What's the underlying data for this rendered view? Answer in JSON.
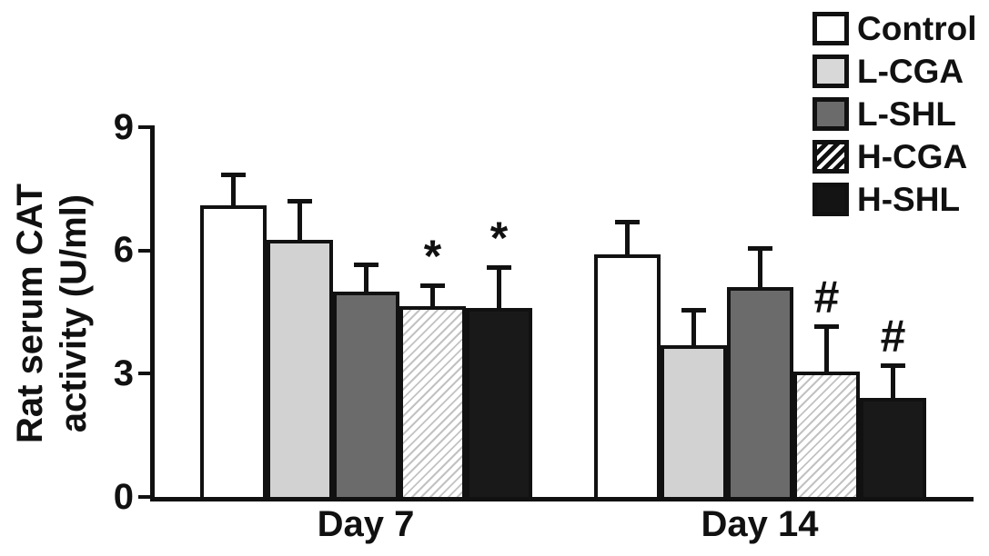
{
  "chart_data": {
    "type": "bar",
    "title": "",
    "ylabel": "Rat serum CAT\nactivity (U/ml)",
    "xlabel": "",
    "categories": [
      "Day 7",
      "Day 14"
    ],
    "yticks": [
      0,
      3,
      6,
      9
    ],
    "ylim": [
      0,
      9
    ],
    "grid": false,
    "legend_position": "top-right",
    "error_bars": "upper-only",
    "series": [
      {
        "name": "Control",
        "fill": "white",
        "values": [
          7.1,
          5.9
        ],
        "errors": [
          0.75,
          0.8
        ],
        "sig": [
          "",
          ""
        ]
      },
      {
        "name": "L-CGA",
        "fill": "lightgray",
        "values": [
          6.25,
          3.7
        ],
        "errors": [
          0.95,
          0.85
        ],
        "sig": [
          "",
          ""
        ]
      },
      {
        "name": "L-SHL",
        "fill": "darkgray",
        "values": [
          5.0,
          5.1
        ],
        "errors": [
          0.65,
          0.95
        ],
        "sig": [
          "",
          ""
        ]
      },
      {
        "name": "H-CGA",
        "fill": "hatch",
        "values": [
          4.65,
          3.05
        ],
        "errors": [
          0.5,
          1.1
        ],
        "sig": [
          "*",
          "#"
        ]
      },
      {
        "name": "H-SHL",
        "fill": "black",
        "values": [
          4.6,
          2.4
        ],
        "errors": [
          1.0,
          0.8
        ],
        "sig": [
          "*",
          "#"
        ]
      }
    ]
  }
}
